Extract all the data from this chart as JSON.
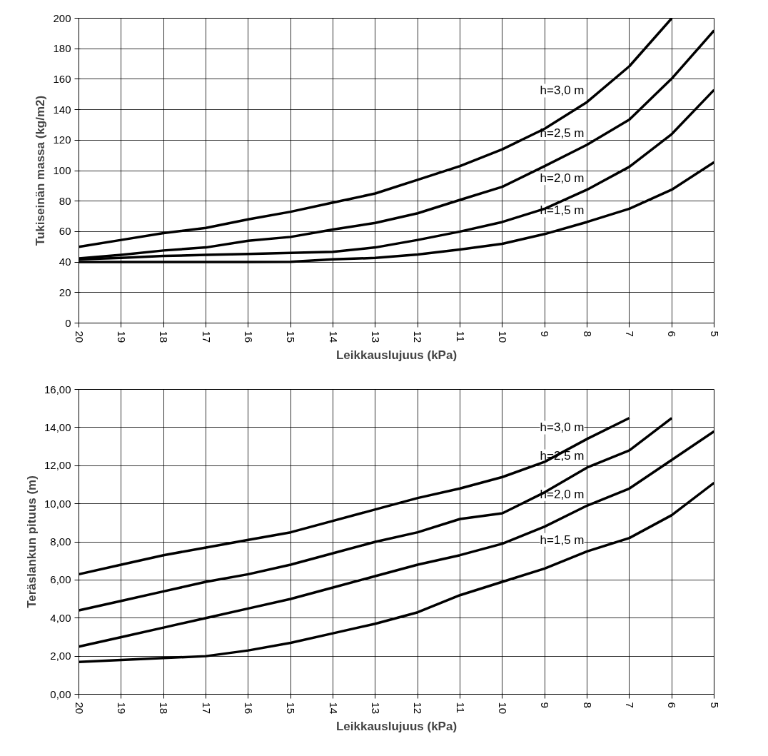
{
  "chart_data": [
    {
      "type": "line",
      "xlabel": "Leikkauslujuus (kPa)",
      "ylabel": "Tukiseinän massa (kg/m2)",
      "categories": [
        "20",
        "19",
        "18",
        "17",
        "16",
        "15",
        "14",
        "13",
        "12",
        "11",
        "10",
        "9",
        "8",
        "7",
        "6",
        "5"
      ],
      "ylim": [
        0,
        200
      ],
      "yticks": [
        0,
        20,
        40,
        60,
        80,
        100,
        120,
        140,
        160,
        180,
        200
      ],
      "grid": true,
      "marker": "none",
      "line_style": "solid",
      "series": [
        {
          "color": "#000000",
          "values": [
            50,
            54.5,
            59,
            62.4,
            68,
            73,
            79,
            85,
            94,
            103,
            114,
            127.5,
            145,
            168.5,
            200,
            null
          ]
        },
        {
          "color": "#000000",
          "values": [
            42.4,
            44.7,
            47.6,
            49.6,
            54,
            56.5,
            61.4,
            65.7,
            72,
            80.8,
            89.4,
            103,
            117,
            133.5,
            160.4,
            192
          ]
        },
        {
          "color": "#000000",
          "values": [
            41.8,
            42.7,
            44,
            44.7,
            45.3,
            46,
            46.7,
            49.6,
            54.5,
            60,
            66.3,
            75,
            87.5,
            102.5,
            124,
            153
          ]
        },
        {
          "color": "#000000",
          "values": [
            40,
            40,
            40,
            40,
            40,
            40.2,
            41.8,
            42.7,
            45,
            48.2,
            52,
            58.4,
            66.3,
            75,
            87.5,
            105.5
          ]
        }
      ],
      "annotations": [
        {
          "text": "h=3,0 m",
          "x": "8",
          "y": 145
        },
        {
          "text": "h=2,5 m",
          "x": "8",
          "y": 117
        },
        {
          "text": "h=2,0 m",
          "x": "8",
          "y": 87.5
        },
        {
          "text": "h=1,5 m",
          "x": "8",
          "y": 66.3
        }
      ]
    },
    {
      "type": "line",
      "xlabel": "Leikkauslujuus (kPa)",
      "ylabel": "Teräslankun pituus (m)",
      "categories": [
        "20",
        "19",
        "18",
        "17",
        "16",
        "15",
        "14",
        "13",
        "12",
        "11",
        "10",
        "9",
        "8",
        "7",
        "6",
        "5"
      ],
      "ylim": [
        0,
        16
      ],
      "yticks": [
        {
          "value": 0,
          "label": "0,00"
        },
        {
          "value": 2,
          "label": "2,00"
        },
        {
          "value": 4,
          "label": "4,00"
        },
        {
          "value": 6,
          "label": "6,00"
        },
        {
          "value": 8,
          "label": "8,00"
        },
        {
          "value": 10,
          "label": "10,00"
        },
        {
          "value": 12,
          "label": "12,00"
        },
        {
          "value": 14,
          "label": "14,00"
        },
        {
          "value": 16,
          "label": "16,00"
        }
      ],
      "grid": true,
      "marker": "none",
      "line_style": "solid",
      "series": [
        {
          "color": "#000000",
          "values": [
            6.3,
            6.8,
            7.3,
            7.7,
            8.1,
            8.5,
            9.1,
            9.7,
            10.3,
            10.8,
            11.4,
            12.2,
            13.4,
            14.5,
            null,
            null
          ]
        },
        {
          "color": "#000000",
          "values": [
            4.4,
            4.9,
            5.4,
            5.9,
            6.3,
            6.8,
            7.4,
            8.0,
            8.5,
            9.2,
            9.5,
            10.6,
            11.9,
            12.8,
            14.5,
            null
          ]
        },
        {
          "color": "#000000",
          "values": [
            2.5,
            3.0,
            3.5,
            4.0,
            4.5,
            5.0,
            5.6,
            6.2,
            6.8,
            7.3,
            7.9,
            8.8,
            9.9,
            10.8,
            12.3,
            13.8
          ]
        },
        {
          "color": "#000000",
          "values": [
            1.7,
            1.8,
            1.9,
            2.0,
            2.3,
            2.7,
            3.2,
            3.7,
            4.3,
            5.2,
            5.9,
            6.6,
            7.5,
            8.2,
            9.4,
            11.1
          ]
        }
      ],
      "annotations": [
        {
          "text": "h=3,0 m",
          "x": "8",
          "y": 13.4
        },
        {
          "text": "h=2,5 m",
          "x": "8",
          "y": 11.9
        },
        {
          "text": "h=2,0 m",
          "x": "8",
          "y": 9.9
        },
        {
          "text": "h=1,5 m",
          "x": "8",
          "y": 7.5
        }
      ]
    }
  ]
}
